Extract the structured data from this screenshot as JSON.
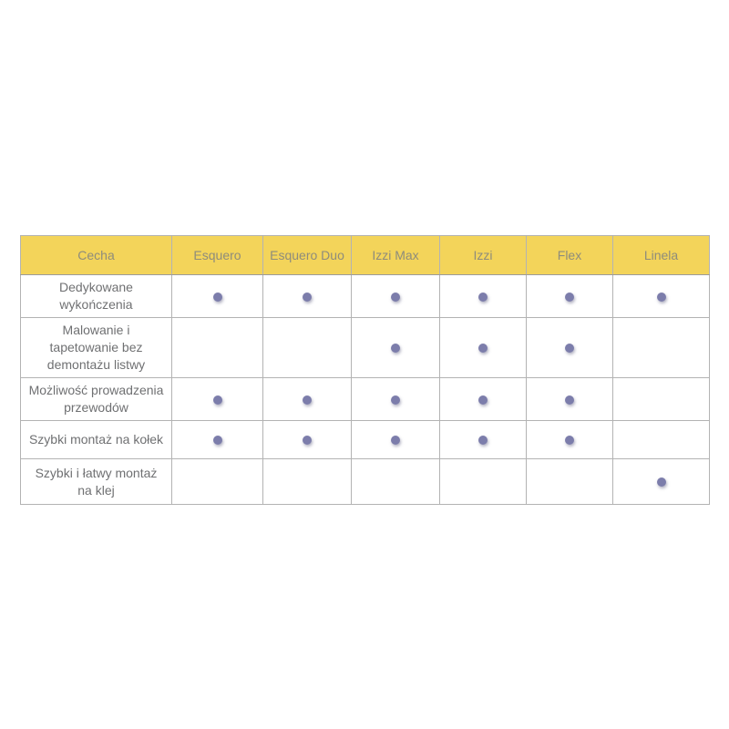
{
  "table": {
    "columns": [
      {
        "label": "Cecha"
      },
      {
        "label": "Esquero"
      },
      {
        "label": "Esquero Duo"
      },
      {
        "label": "Izzi Max"
      },
      {
        "label": "Izzi"
      },
      {
        "label": "Flex"
      },
      {
        "label": "Linela"
      }
    ],
    "rows": [
      {
        "feature": "Dedykowane wykończenia",
        "values": [
          true,
          true,
          true,
          true,
          true,
          true
        ]
      },
      {
        "feature": "Malowanie i tapetowanie bez demontażu listwy",
        "values": [
          false,
          false,
          true,
          true,
          true,
          false
        ]
      },
      {
        "feature": "Możliwość prowadzenia przewodów",
        "values": [
          true,
          true,
          true,
          true,
          true,
          false
        ]
      },
      {
        "feature": "Szybki montaż na kołek",
        "values": [
          true,
          true,
          true,
          true,
          true,
          false
        ]
      },
      {
        "feature": "Szybki i łatwy montaż na klej",
        "values": [
          false,
          false,
          false,
          false,
          false,
          true
        ]
      }
    ],
    "colors": {
      "header_bg": "#f3d45a",
      "header_text": "#8e8c7c",
      "body_text": "#6f7072",
      "inner_border": "#b3b3b3",
      "outer_border": "#9b9b9b",
      "dot": "#7c7dab"
    },
    "dot_symbol_name": "feature-present-dot"
  },
  "chart_data": {
    "type": "table",
    "title": "",
    "categories": [
      "Esquero",
      "Esquero Duo",
      "Izzi Max",
      "Izzi",
      "Flex",
      "Linela"
    ],
    "row_header_label": "Cecha",
    "rows": [
      {
        "feature": "Dedykowane wykończenia",
        "values": [
          1,
          1,
          1,
          1,
          1,
          1
        ]
      },
      {
        "feature": "Malowanie i tapetowanie bez demontażu listwy",
        "values": [
          0,
          0,
          1,
          1,
          1,
          0
        ]
      },
      {
        "feature": "Możliwość prowadzenia przewodów",
        "values": [
          1,
          1,
          1,
          1,
          1,
          0
        ]
      },
      {
        "feature": "Szybki montaż na kołek",
        "values": [
          1,
          1,
          1,
          1,
          1,
          0
        ]
      },
      {
        "feature": "Szybki i łatwy montaż na klej",
        "values": [
          0,
          0,
          0,
          0,
          0,
          1
        ]
      }
    ],
    "legend": "dot = feature available",
    "layout": "grid with yellow header row"
  }
}
